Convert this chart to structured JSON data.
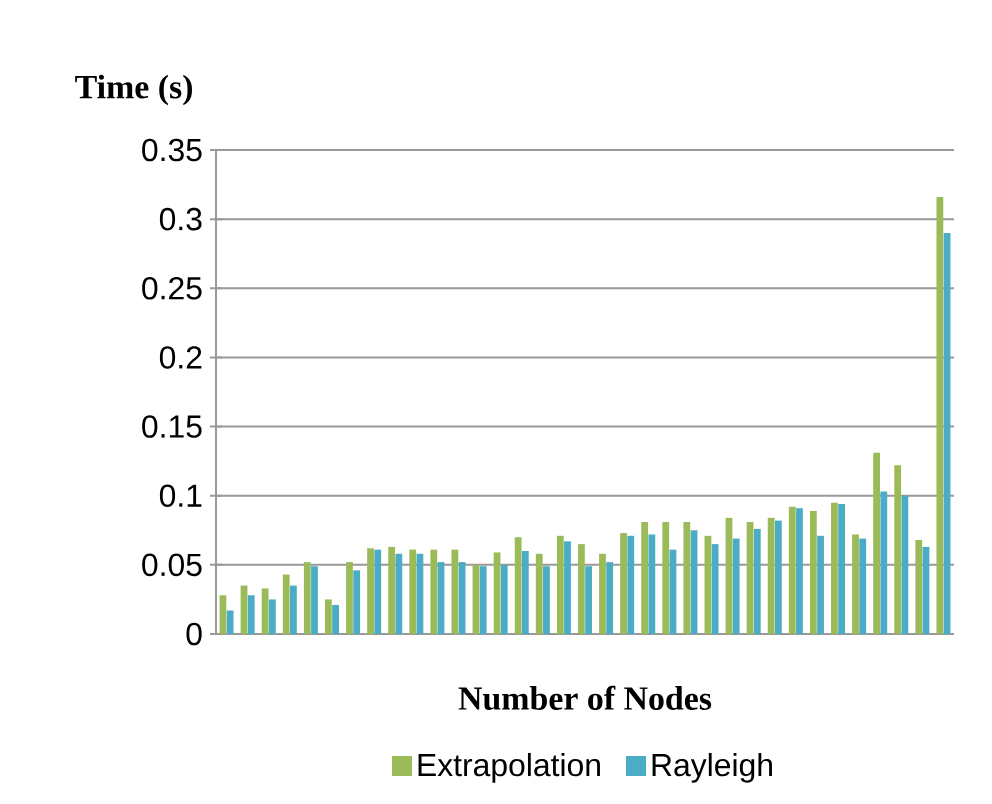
{
  "chart_data": {
    "type": "bar",
    "ylabel": "Time (s)",
    "xlabel": "Number of Nodes",
    "categories": [
      null,
      null,
      null,
      null,
      null,
      null,
      null,
      null,
      null,
      null,
      null,
      null,
      null,
      null,
      null,
      null,
      null,
      null,
      null,
      null,
      null,
      null,
      null,
      null,
      null,
      null,
      null,
      null,
      null,
      null,
      null,
      null,
      null,
      null,
      null
    ],
    "series": [
      {
        "name": "Extrapolation",
        "color": "#9bbb59",
        "values": [
          0.028,
          0.035,
          0.033,
          0.043,
          0.052,
          0.025,
          0.052,
          0.062,
          0.063,
          0.061,
          0.061,
          0.061,
          0.05,
          0.059,
          0.07,
          0.058,
          0.071,
          0.065,
          0.058,
          0.073,
          0.081,
          0.081,
          0.081,
          0.071,
          0.084,
          0.081,
          0.084,
          0.092,
          0.089,
          0.095,
          0.072,
          0.131,
          0.122,
          0.068,
          0.316
        ]
      },
      {
        "name": "Rayleigh",
        "color": "#4bacc6",
        "values": [
          0.017,
          0.028,
          0.025,
          0.035,
          0.049,
          0.021,
          0.046,
          0.061,
          0.058,
          0.058,
          0.052,
          0.052,
          0.049,
          0.05,
          0.06,
          0.049,
          0.067,
          0.049,
          0.052,
          0.071,
          0.072,
          0.061,
          0.075,
          0.065,
          0.069,
          0.076,
          0.082,
          0.091,
          0.071,
          0.094,
          0.069,
          0.103,
          0.1,
          0.063,
          0.29
        ]
      }
    ],
    "ylim": [
      0,
      0.35
    ],
    "yticks": [
      0,
      0.05,
      0.1,
      0.15,
      0.2,
      0.25,
      0.3,
      0.35
    ],
    "grid": "y",
    "legend": "bottom"
  }
}
